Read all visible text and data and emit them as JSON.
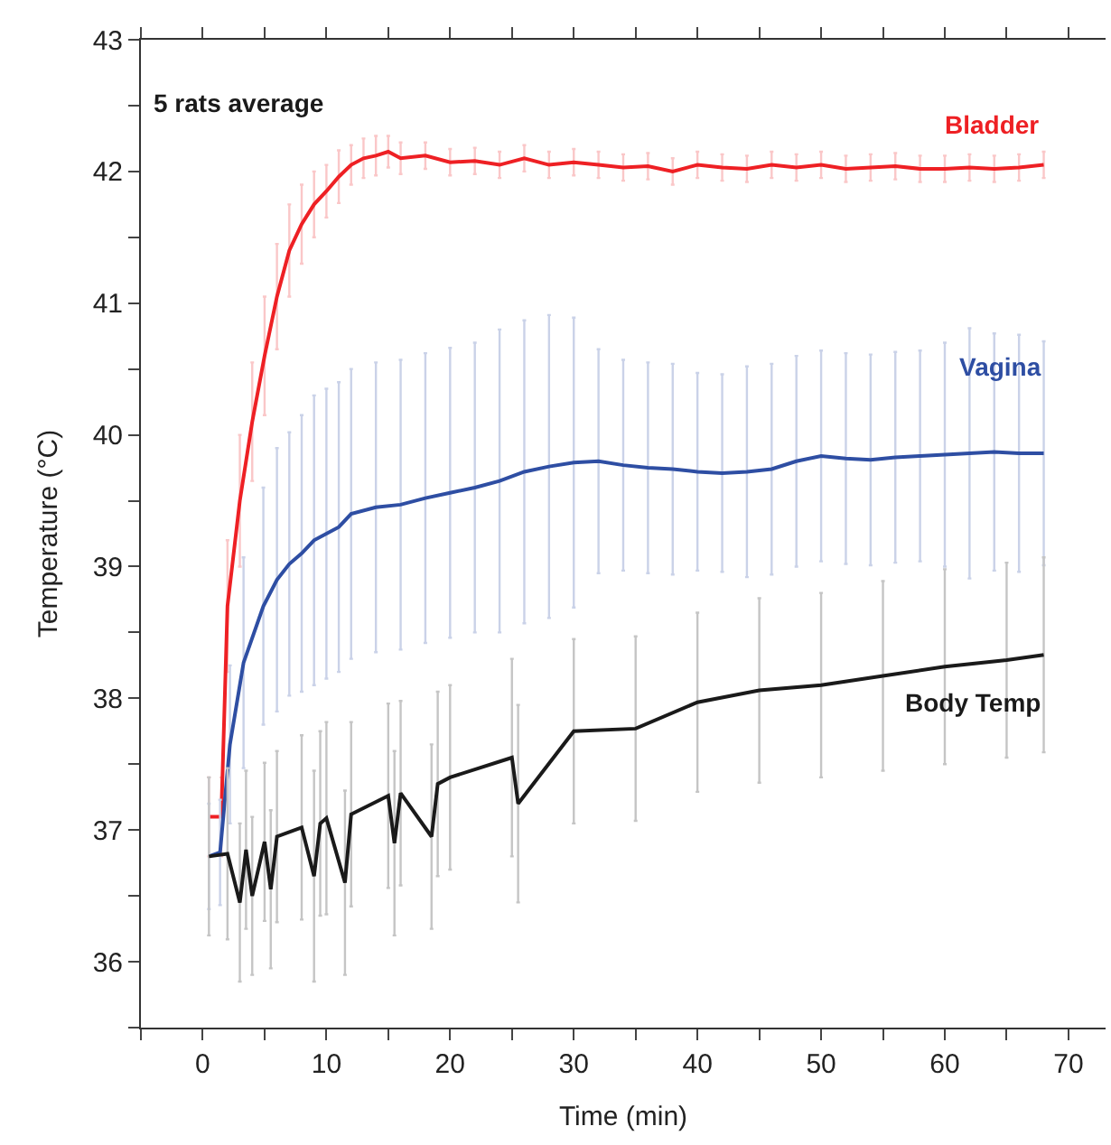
{
  "chart_data": {
    "type": "line",
    "xlabel": "Time (min)",
    "ylabel": "Temperature (°C)",
    "annotations": [
      "5 rats average"
    ],
    "xlim": [
      -5,
      73
    ],
    "ylim": [
      35.5,
      43
    ],
    "xticks": [
      {
        "value": -5,
        "label": null
      },
      0,
      {
        "value": 5,
        "label": null
      },
      10,
      {
        "value": 15,
        "label": null
      },
      20,
      {
        "value": 25,
        "label": null
      },
      30,
      {
        "value": 35,
        "label": null
      },
      40,
      {
        "value": 45,
        "label": null
      },
      50,
      {
        "value": 55,
        "label": null
      },
      60,
      {
        "value": 65,
        "label": null
      },
      70
    ],
    "yticks": [
      {
        "value": 35.5,
        "label": null
      },
      36,
      {
        "value": 36.5,
        "label": null
      },
      37,
      {
        "value": 37.5,
        "label": null
      },
      38,
      {
        "value": 38.5,
        "label": null
      },
      39,
      {
        "value": 39.5,
        "label": null
      },
      40,
      {
        "value": 40.5,
        "label": null
      },
      41,
      {
        "value": 41.5,
        "label": null
      },
      42,
      {
        "value": 42.5,
        "label": null
      },
      43
    ],
    "legend": false,
    "marker": "none",
    "line_style": "solid",
    "series": [
      {
        "name": "Bladder",
        "color": "#ee2024",
        "x": [
          0.5,
          1.5,
          2,
          3,
          4,
          5,
          6,
          7,
          8,
          9,
          10,
          11,
          12,
          13,
          14,
          15,
          16,
          18,
          20,
          22,
          24,
          26,
          28,
          30,
          32,
          34,
          36,
          38,
          40,
          42,
          44,
          46,
          48,
          50,
          52,
          54,
          56,
          58,
          60,
          62,
          64,
          66,
          68
        ],
        "values": [
          37.1,
          37.1,
          38.7,
          39.5,
          40.1,
          40.6,
          41.05,
          41.4,
          41.6,
          41.75,
          41.85,
          41.96,
          42.05,
          42.1,
          42.12,
          42.15,
          42.1,
          42.12,
          42.07,
          42.08,
          42.05,
          42.1,
          42.05,
          42.07,
          42.05,
          42.03,
          42.04,
          42.0,
          42.05,
          42.03,
          42.02,
          42.05,
          42.03,
          42.05,
          42.02,
          42.03,
          42.04,
          42.02,
          42.02,
          42.03,
          42.02,
          42.03,
          42.05
        ],
        "errors": [
          0.3,
          0.3,
          0.5,
          0.5,
          0.45,
          0.45,
          0.4,
          0.35,
          0.3,
          0.25,
          0.2,
          0.2,
          0.15,
          0.15,
          0.15,
          0.12,
          0.12,
          0.1,
          0.1,
          0.1,
          0.1,
          0.1,
          0.1,
          0.1,
          0.1,
          0.1,
          0.1,
          0.1,
          0.1,
          0.1,
          0.1,
          0.1,
          0.1,
          0.1,
          0.1,
          0.1,
          0.1,
          0.1,
          0.1,
          0.1,
          0.1,
          0.1,
          0.1
        ]
      },
      {
        "name": "Vagina",
        "color": "#2e4ea3",
        "x": [
          0.5,
          1.4,
          2.2,
          3.3,
          4.9,
          6,
          7,
          8,
          9,
          10,
          11,
          12,
          14,
          16,
          18,
          20,
          22,
          24,
          26,
          28,
          30,
          32,
          34,
          36,
          38,
          40,
          42,
          44,
          46,
          48,
          50,
          52,
          54,
          56,
          58,
          60,
          62,
          64,
          66,
          68
        ],
        "values": [
          36.8,
          36.83,
          37.65,
          38.27,
          38.7,
          38.9,
          39.02,
          39.1,
          39.2,
          39.25,
          39.3,
          39.4,
          39.45,
          39.47,
          39.52,
          39.56,
          39.6,
          39.65,
          39.72,
          39.76,
          39.79,
          39.8,
          39.77,
          39.75,
          39.74,
          39.72,
          39.71,
          39.72,
          39.74,
          39.8,
          39.84,
          39.82,
          39.81,
          39.83,
          39.84,
          39.85,
          39.86,
          39.87,
          39.86,
          39.86
        ],
        "errors": [
          0.4,
          0.4,
          0.6,
          0.8,
          0.9,
          1.0,
          1.0,
          1.05,
          1.1,
          1.1,
          1.1,
          1.1,
          1.1,
          1.1,
          1.1,
          1.1,
          1.1,
          1.15,
          1.15,
          1.15,
          1.1,
          0.85,
          0.8,
          0.8,
          0.8,
          0.75,
          0.75,
          0.8,
          0.8,
          0.8,
          0.8,
          0.8,
          0.8,
          0.8,
          0.8,
          0.85,
          0.95,
          0.9,
          0.9,
          0.85
        ]
      },
      {
        "name": "Body Temp",
        "color": "#1a1a1a",
        "x": [
          0.5,
          2,
          3,
          3.5,
          4,
          5,
          5.5,
          6,
          8,
          9,
          9.5,
          10,
          11.5,
          12,
          15,
          15.5,
          16,
          18.5,
          19,
          20,
          25,
          25.5,
          30,
          35,
          40,
          45,
          50,
          55,
          60,
          65,
          68
        ],
        "values": [
          36.8,
          36.82,
          36.45,
          36.85,
          36.5,
          36.91,
          36.55,
          36.95,
          37.02,
          36.65,
          37.05,
          37.09,
          36.6,
          37.12,
          37.26,
          36.9,
          37.28,
          36.95,
          37.35,
          37.4,
          37.55,
          37.2,
          37.75,
          37.77,
          37.97,
          38.06,
          38.1,
          38.17,
          38.24,
          38.29,
          38.33
        ],
        "errors": [
          0.6,
          0.65,
          0.6,
          0.6,
          0.6,
          0.6,
          0.6,
          0.65,
          0.7,
          0.8,
          0.7,
          0.73,
          0.7,
          0.7,
          0.7,
          0.7,
          0.7,
          0.7,
          0.7,
          0.7,
          0.75,
          0.75,
          0.7,
          0.7,
          0.68,
          0.7,
          0.7,
          0.72,
          0.74,
          0.74,
          0.74
        ]
      }
    ]
  }
}
